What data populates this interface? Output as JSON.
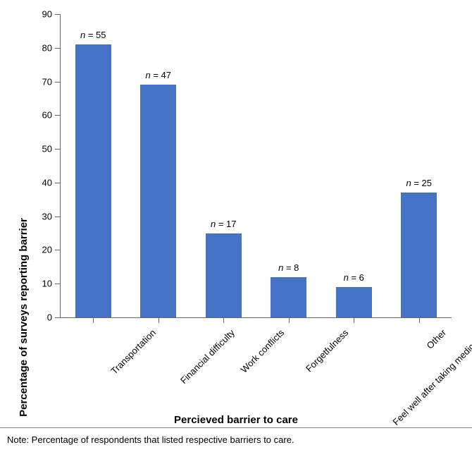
{
  "chart": {
    "type": "bar",
    "ylabel": "Percentage of surveys reporting barrier",
    "xlabel": "Percieved barrier to care",
    "ylim": [
      0,
      90
    ],
    "ytick_step": 10,
    "yticks": [
      0,
      10,
      20,
      30,
      40,
      50,
      60,
      70,
      80,
      90
    ],
    "categories": [
      "Transportation",
      "Financial difficulty",
      "Work conflicts",
      "Forgetfulness",
      "Feel well after taking medication",
      "Other"
    ],
    "values": [
      81,
      69,
      25,
      12,
      9,
      37
    ],
    "annotations": [
      "n = 55",
      "n = 47",
      "n = 17",
      "n = 8",
      "n = 6",
      "n = 25"
    ],
    "bar_color": "#4472c4",
    "background_color": "#ffffff",
    "axis_color": "#666666",
    "bar_width": 0.55,
    "label_fontsize": 15,
    "tick_fontsize": 13,
    "anno_fontsize": 13
  },
  "note": "Note: Percentage of respondents that listed respective barriers to care."
}
